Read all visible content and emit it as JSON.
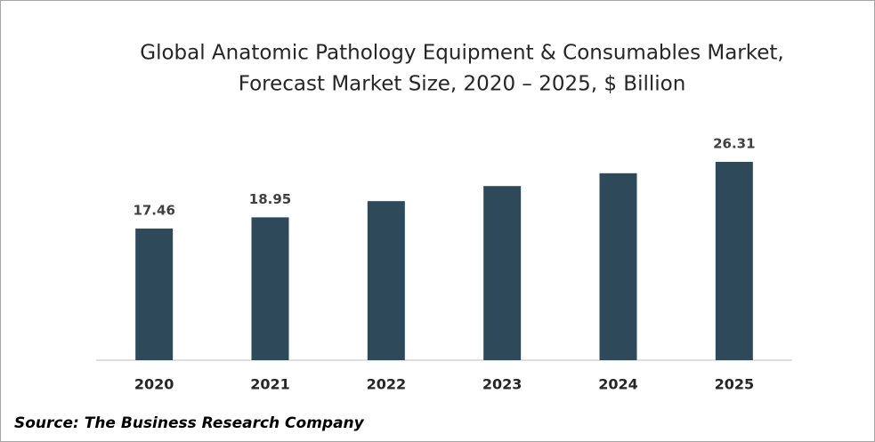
{
  "chart_data": {
    "type": "bar",
    "title": [
      "Global Anatomic Pathology Equipment & Consumables Market,",
      "Forecast Market Size, 2020 – 2025, $ Billion"
    ],
    "categories": [
      "2020",
      "2021",
      "2022",
      "2023",
      "2024",
      "2025"
    ],
    "values": [
      17.46,
      18.95,
      21.1,
      23.1,
      24.8,
      26.31
    ],
    "data_labels": [
      true,
      true,
      false,
      false,
      false,
      true
    ],
    "color": "#2e4a5a",
    "source": "Source: The Business Research Company"
  }
}
